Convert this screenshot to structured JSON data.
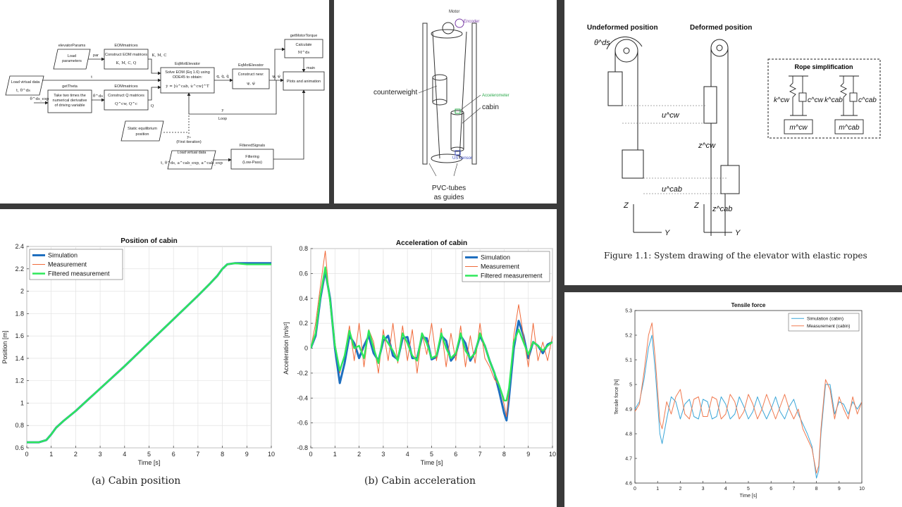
{
  "flow": {
    "elevatorParams": "elevatorParams",
    "load_params_1": "Load",
    "load_params_2": "parameters",
    "par": "par",
    "eom_title": "EOMmatrices",
    "eom_box_1": "Construct EOM matrices",
    "eom_box_2": "K, M, C, Q",
    "eom_out": "K, M, C",
    "load_virtual_1": "Load virtual data",
    "load_virtual_2": "t, θ^ds",
    "t_label": "t",
    "gettheta_title": "getTheta",
    "gettheta_box_1": "Take two times the",
    "gettheta_box_2": "numerical derivative",
    "gettheta_box_3": "of driving variable",
    "theta_in": "θ^ds_exp",
    "theta_out": "θ̈^ds",
    "eomq_title": "EOMmatrices",
    "eomq_box_1": "Construct Q matrices",
    "eomq_box_2": "Q^cw, Q^c",
    "q_label": "Q",
    "eqmot_title": "EqMotElevator",
    "eqmot_box_1": "Solve EOM (Eq 1.6) using",
    "eqmot_box_2": "ODE45 to obtain:",
    "eqmot_box_3": "ẏ = [u̇^cab, u̇^cw]^T",
    "eqmot_out": "q, q̇, q̈",
    "eqmot2_title": "EqMotElevator",
    "eqmot2_box_1": "Construct new:",
    "eqmot2_box_2": "ψ, ψ̇",
    "psi_out": "ψ, ψ̇",
    "motor_title": "getMotorTorque",
    "motor_box_1": "Calculate",
    "motor_box_2": "M^ds",
    "main_label": "main",
    "plots_box": "Plots and animation",
    "y_label": "y",
    "loop_label": "Loop",
    "static_1": "Static equilibrium",
    "static_2": "position",
    "y0_label": "y₀",
    "first_iter": "(First iteration)",
    "load_virtual2_1": "Load virtual data",
    "load_virtual2_2": "t, θ^ds, a^cab_exp, a^cab_exp",
    "filtered_title": "FilteredSignals",
    "filtered_box_1": "Filtering",
    "filtered_box_2": "(Low-Pass)"
  },
  "setup": {
    "motor": "Motor",
    "encoder": "Encoder",
    "counterweight": "counterweight",
    "accelerometer": "Accelerometer",
    "cabin": "cabin",
    "us_sensor": "US sensor",
    "pvc_1": "PVC-tubes",
    "pvc_2": "as guides"
  },
  "system": {
    "undeformed": "Undeformed position",
    "deformed": "Deformed position",
    "theta_ds": "θ^ds",
    "u_cw": "u^cw",
    "u_cab": "u^cab",
    "z_cw": "z^cw",
    "z_cab": "z^cab",
    "axis_z": "Z",
    "axis_y": "Y",
    "rope_title": "Rope simplification",
    "k_cw": "k^cw",
    "c_cw": "c^cw",
    "k_cab": "k^cab",
    "c_cab": "c^cab",
    "m_cw": "m^cw",
    "m_cab": "m^cab",
    "caption": "Figure 1.1: System drawing of the elevator with elastic ropes"
  },
  "captions": {
    "a": "(a) Cabin position",
    "b": "(b) Cabin acceleration"
  },
  "chart_data": [
    {
      "type": "line",
      "title": "Position of cabin",
      "xlabel": "Time [s]",
      "ylabel": "Position [m]",
      "xlim": [
        0,
        10
      ],
      "ylim": [
        0.6,
        2.4
      ],
      "xticks": [
        "0",
        "1",
        "2",
        "3",
        "4",
        "5",
        "6",
        "7",
        "8",
        "9",
        "10"
      ],
      "yticks": [
        "0.6",
        "0.8",
        "1",
        "1.2",
        "1.4",
        "1.6",
        "1.8",
        "2",
        "2.2",
        "2.4"
      ],
      "grid": true,
      "legend": "top-left",
      "series": [
        {
          "name": "Simulation",
          "color": "#1f6fbf",
          "x": [
            0,
            0.5,
            0.8,
            1.0,
            1.2,
            1.5,
            2,
            3,
            4,
            5,
            6,
            7,
            7.5,
            7.8,
            8.0,
            8.2,
            8.5,
            9,
            10
          ],
          "y": [
            0.65,
            0.65,
            0.67,
            0.72,
            0.78,
            0.84,
            0.93,
            1.13,
            1.33,
            1.54,
            1.75,
            1.96,
            2.07,
            2.14,
            2.2,
            2.24,
            2.25,
            2.25,
            2.25
          ]
        },
        {
          "name": "Measurement",
          "color": "#f06a3a",
          "x": [
            0,
            0.5,
            0.8,
            1.0,
            1.2,
            1.5,
            2,
            3,
            4,
            5,
            6,
            7,
            7.5,
            7.8,
            8.0,
            8.2,
            8.5,
            9,
            10
          ],
          "y": [
            0.65,
            0.65,
            0.67,
            0.72,
            0.78,
            0.84,
            0.93,
            1.13,
            1.33,
            1.54,
            1.75,
            1.96,
            2.07,
            2.14,
            2.2,
            2.24,
            2.25,
            2.24,
            2.24
          ]
        },
        {
          "name": "Filtered measurement",
          "color": "#2ee85a",
          "x": [
            0,
            0.5,
            0.8,
            1.0,
            1.2,
            1.5,
            2,
            3,
            4,
            5,
            6,
            7,
            7.5,
            7.8,
            8.0,
            8.2,
            8.5,
            9,
            10
          ],
          "y": [
            0.65,
            0.65,
            0.67,
            0.72,
            0.78,
            0.84,
            0.93,
            1.13,
            1.33,
            1.54,
            1.75,
            1.96,
            2.07,
            2.14,
            2.2,
            2.24,
            2.25,
            2.24,
            2.24
          ]
        }
      ]
    },
    {
      "type": "line",
      "title": "Acceleration of cabin",
      "xlabel": "Time [s]",
      "ylabel": "Acceleration [m/s²]",
      "xlim": [
        0,
        10
      ],
      "ylim": [
        -0.8,
        0.8
      ],
      "xticks": [
        "0",
        "1",
        "2",
        "3",
        "4",
        "5",
        "6",
        "7",
        "8",
        "9",
        "10"
      ],
      "yticks": [
        "-0.8",
        "-0.6",
        "-0.4",
        "-0.2",
        "0",
        "0.2",
        "0.4",
        "0.6",
        "0.8"
      ],
      "grid": true,
      "legend": "top-right",
      "series": [
        {
          "name": "Simulation",
          "color": "#1f6fbf",
          "x": [
            0,
            0.2,
            0.4,
            0.6,
            0.8,
            1.0,
            1.2,
            1.4,
            1.6,
            1.8,
            2.0,
            2.2,
            2.4,
            2.6,
            2.8,
            3.0,
            3.2,
            3.4,
            3.6,
            3.8,
            4.0,
            4.2,
            4.4,
            4.6,
            4.8,
            5.0,
            5.2,
            5.4,
            5.6,
            5.8,
            6.0,
            6.2,
            6.4,
            6.6,
            6.8,
            7.0,
            7.2,
            7.4,
            7.6,
            7.8,
            8.0,
            8.1,
            8.2,
            8.4,
            8.6,
            8.8,
            9.0,
            9.2,
            9.4,
            9.6,
            9.8,
            10
          ],
          "y": [
            0,
            0.1,
            0.4,
            0.62,
            0.4,
            0.0,
            -0.28,
            -0.12,
            0.1,
            0.04,
            -0.08,
            0.02,
            0.1,
            -0.04,
            -0.1,
            0.06,
            0.1,
            -0.06,
            -0.09,
            0.08,
            0.09,
            -0.08,
            -0.08,
            0.09,
            0.08,
            -0.09,
            -0.07,
            0.1,
            0.06,
            -0.1,
            -0.05,
            0.1,
            0.04,
            -0.1,
            -0.03,
            0.1,
            0.02,
            -0.1,
            -0.2,
            -0.35,
            -0.52,
            -0.58,
            -0.4,
            0.0,
            0.22,
            0.1,
            -0.08,
            0.05,
            0.02,
            -0.04,
            0.03,
            0.05
          ]
        },
        {
          "name": "Measurement",
          "color": "#f06a3a",
          "x": [
            0,
            0.2,
            0.4,
            0.6,
            0.8,
            1.0,
            1.2,
            1.4,
            1.6,
            1.8,
            2.0,
            2.2,
            2.4,
            2.6,
            2.8,
            3.0,
            3.2,
            3.4,
            3.6,
            3.8,
            4.0,
            4.2,
            4.4,
            4.6,
            4.8,
            5.0,
            5.2,
            5.4,
            5.6,
            5.8,
            6.0,
            6.2,
            6.4,
            6.6,
            6.8,
            7.0,
            7.2,
            7.4,
            7.6,
            7.8,
            8.0,
            8.1,
            8.2,
            8.4,
            8.6,
            8.8,
            9.0,
            9.2,
            9.4,
            9.6,
            9.8,
            10
          ],
          "y": [
            0,
            0.2,
            0.5,
            0.78,
            0.35,
            0.05,
            -0.2,
            -0.05,
            0.18,
            -0.1,
            0.2,
            -0.15,
            0.15,
            0.05,
            -0.2,
            0.15,
            -0.1,
            0.2,
            -0.12,
            0.18,
            -0.1,
            0.15,
            -0.2,
            0.12,
            -0.05,
            0.2,
            -0.1,
            0.16,
            -0.15,
            0.12,
            -0.1,
            0.18,
            -0.15,
            0.1,
            -0.12,
            0.2,
            -0.08,
            -0.15,
            -0.25,
            -0.3,
            -0.45,
            -0.55,
            -0.35,
            0.1,
            0.35,
            0.1,
            -0.15,
            0.2,
            -0.1,
            0.05,
            -0.1,
            0.1
          ]
        },
        {
          "name": "Filtered measurement",
          "color": "#2ee85a",
          "x": [
            0,
            0.2,
            0.4,
            0.6,
            0.8,
            1.0,
            1.2,
            1.4,
            1.6,
            1.8,
            2.0,
            2.2,
            2.4,
            2.6,
            2.8,
            3.0,
            3.2,
            3.4,
            3.6,
            3.8,
            4.0,
            4.2,
            4.4,
            4.6,
            4.8,
            5.0,
            5.2,
            5.4,
            5.6,
            5.8,
            6.0,
            6.2,
            6.4,
            6.6,
            6.8,
            7.0,
            7.2,
            7.4,
            7.6,
            7.8,
            8.0,
            8.1,
            8.2,
            8.4,
            8.6,
            8.8,
            9.0,
            9.2,
            9.4,
            9.6,
            9.8,
            10
          ],
          "y": [
            0,
            0.12,
            0.42,
            0.65,
            0.38,
            0.02,
            -0.18,
            -0.06,
            0.14,
            0.0,
            0.02,
            -0.08,
            0.14,
            0.0,
            -0.12,
            0.1,
            0.04,
            -0.02,
            -0.1,
            0.12,
            0.04,
            -0.06,
            -0.1,
            0.12,
            0.04,
            -0.08,
            -0.06,
            0.12,
            0.0,
            -0.08,
            -0.04,
            0.12,
            -0.02,
            -0.08,
            -0.04,
            0.12,
            0.02,
            -0.1,
            -0.2,
            -0.3,
            -0.42,
            -0.42,
            -0.32,
            0.05,
            0.15,
            0.05,
            -0.05,
            0.05,
            0.02,
            -0.02,
            0.02,
            0.05
          ]
        }
      ]
    },
    {
      "type": "line",
      "title": "Tensile force",
      "xlabel": "Time [s]",
      "ylabel": "Tensile force [N]",
      "xlim": [
        0,
        10
      ],
      "ylim": [
        4.6,
        5.3
      ],
      "xticks": [
        "0",
        "1",
        "2",
        "3",
        "4",
        "5",
        "6",
        "7",
        "8",
        "9",
        "10"
      ],
      "yticks": [
        "4.6",
        "4.7",
        "4.8",
        "4.9",
        "5",
        "5.1",
        "5.2",
        "5.3"
      ],
      "grid": false,
      "legend": "top-right",
      "series": [
        {
          "name": "Simulation (cabin)",
          "color": "#3aa6d8",
          "x": [
            0,
            0.2,
            0.4,
            0.6,
            0.75,
            0.9,
            1.1,
            1.2,
            1.4,
            1.6,
            1.8,
            2.0,
            2.2,
            2.4,
            2.6,
            2.8,
            3.0,
            3.2,
            3.4,
            3.6,
            3.8,
            4.0,
            4.2,
            4.4,
            4.6,
            4.8,
            5.0,
            5.2,
            5.4,
            5.6,
            5.8,
            6.0,
            6.2,
            6.4,
            6.6,
            6.8,
            7.0,
            7.2,
            7.4,
            7.6,
            7.8,
            8.0,
            8.1,
            8.2,
            8.4,
            8.6,
            8.8,
            9.0,
            9.2,
            9.4,
            9.6,
            9.8,
            10
          ],
          "y": [
            4.9,
            4.93,
            5.02,
            5.15,
            5.2,
            5.05,
            4.8,
            4.76,
            4.86,
            4.95,
            4.93,
            4.86,
            4.92,
            4.94,
            4.87,
            4.86,
            4.94,
            4.93,
            4.86,
            4.87,
            4.95,
            4.92,
            4.86,
            4.88,
            4.95,
            4.91,
            4.86,
            4.89,
            4.95,
            4.9,
            4.86,
            4.9,
            4.95,
            4.89,
            4.86,
            4.91,
            4.94,
            4.88,
            4.84,
            4.8,
            4.75,
            4.62,
            4.65,
            4.8,
            5.0,
            5.0,
            4.88,
            4.93,
            4.92,
            4.88,
            4.93,
            4.9,
            4.93
          ]
        },
        {
          "name": "Measurement (cabin)",
          "color": "#f07a50",
          "x": [
            0,
            0.2,
            0.4,
            0.6,
            0.75,
            0.9,
            1.1,
            1.2,
            1.4,
            1.6,
            1.8,
            2.0,
            2.2,
            2.4,
            2.6,
            2.8,
            3.0,
            3.2,
            3.4,
            3.6,
            3.8,
            4.0,
            4.2,
            4.4,
            4.6,
            4.8,
            5.0,
            5.2,
            5.4,
            5.6,
            5.8,
            6.0,
            6.2,
            6.4,
            6.6,
            6.8,
            7.0,
            7.2,
            7.4,
            7.6,
            7.8,
            8.0,
            8.1,
            8.2,
            8.4,
            8.6,
            8.8,
            9.0,
            9.2,
            9.4,
            9.6,
            9.8,
            10
          ],
          "y": [
            4.89,
            4.92,
            5.05,
            5.2,
            5.25,
            5.1,
            4.85,
            4.82,
            4.93,
            4.88,
            4.95,
            4.98,
            4.88,
            4.86,
            4.94,
            4.95,
            4.87,
            4.87,
            4.95,
            4.94,
            4.86,
            4.88,
            4.96,
            4.93,
            4.86,
            4.89,
            4.96,
            4.92,
            4.86,
            4.9,
            4.96,
            4.91,
            4.86,
            4.91,
            4.96,
            4.9,
            4.86,
            4.9,
            4.82,
            4.78,
            4.74,
            4.64,
            4.67,
            4.82,
            5.02,
            4.98,
            4.86,
            4.95,
            4.9,
            4.86,
            4.95,
            4.88,
            4.93
          ]
        }
      ]
    }
  ]
}
